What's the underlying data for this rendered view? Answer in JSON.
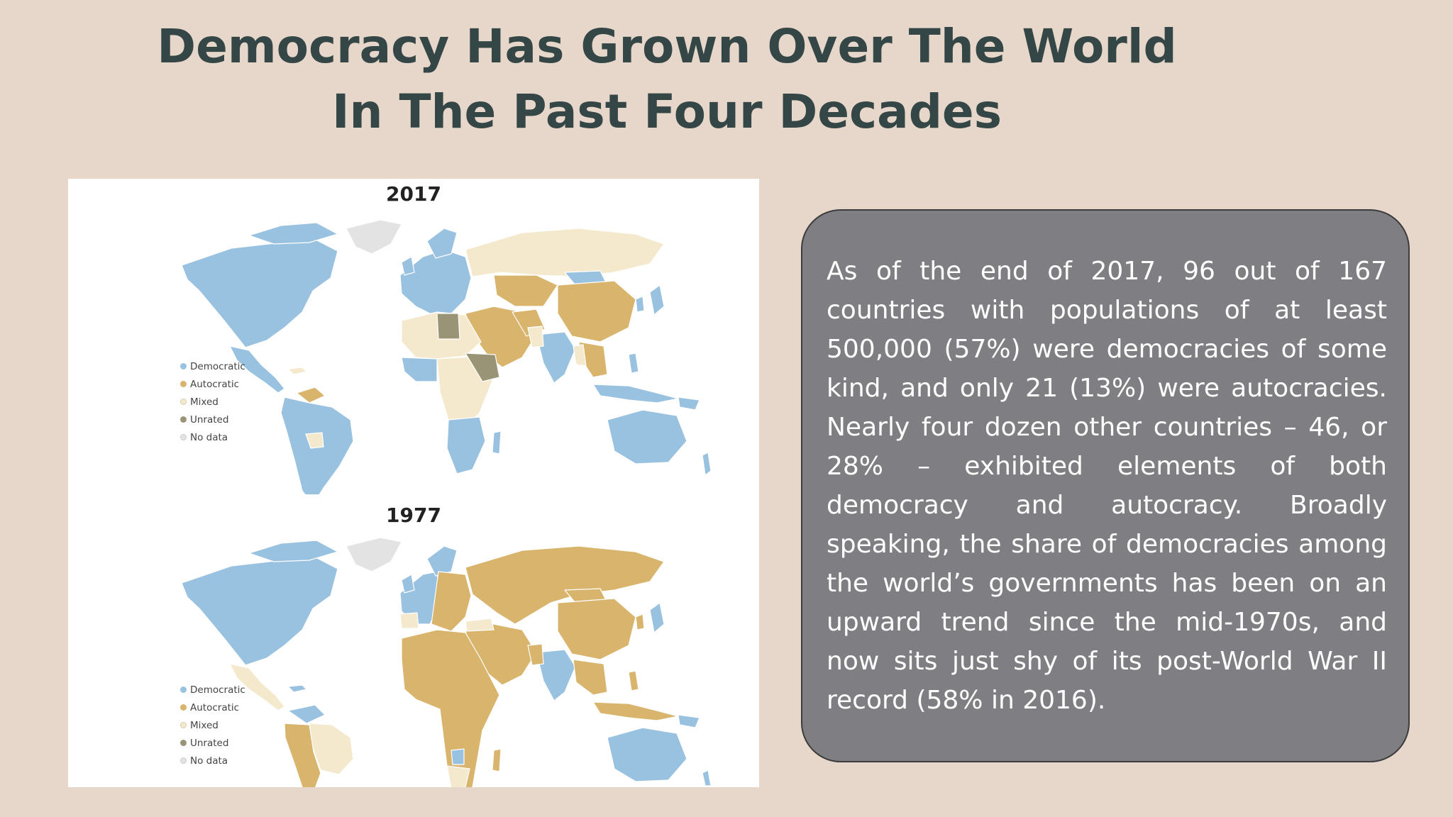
{
  "title": {
    "line1": "Democracy Has Grown Over The World",
    "line2": "In The Past Four Decades"
  },
  "maps": [
    {
      "year": "2017",
      "legend": [
        {
          "label": "Democratic",
          "color": "#98c2e0"
        },
        {
          "label": "Autocratic",
          "color": "#d9b46c"
        },
        {
          "label": "Mixed",
          "color": "#f4e9cc"
        },
        {
          "label": "Unrated",
          "color": "#9a9476"
        },
        {
          "label": "No data",
          "color": "#e3e3e3"
        }
      ]
    },
    {
      "year": "1977",
      "legend": [
        {
          "label": "Democratic",
          "color": "#98c2e0"
        },
        {
          "label": "Autocratic",
          "color": "#d9b46c"
        },
        {
          "label": "Mixed",
          "color": "#f4e9cc"
        },
        {
          "label": "Unrated",
          "color": "#9a9476"
        },
        {
          "label": "No data",
          "color": "#e3e3e3"
        }
      ]
    }
  ],
  "description": "As of the end of 2017, 96 out of 167 countries with populations of at least 500,000 (57%) were democracies of some kind, and only 21 (13%) were autocracies. Nearly four dozen other countries – 46, or 28% – exhibited elements of both democracy and autocracy. Broadly speaking, the share of democracies among the world’s governments has been on an upward trend since the mid-1970s, and now sits just shy of its post-World War II record (58% in 2016).",
  "colors": {
    "background": "#e7d7cb",
    "title": "#354646",
    "textbox": "#7f7e82",
    "democratic": "#98c2e0",
    "autocratic": "#d9b46c",
    "mixed": "#f4e9cc",
    "unrated": "#9a9476",
    "no_data": "#e3e3e3"
  }
}
